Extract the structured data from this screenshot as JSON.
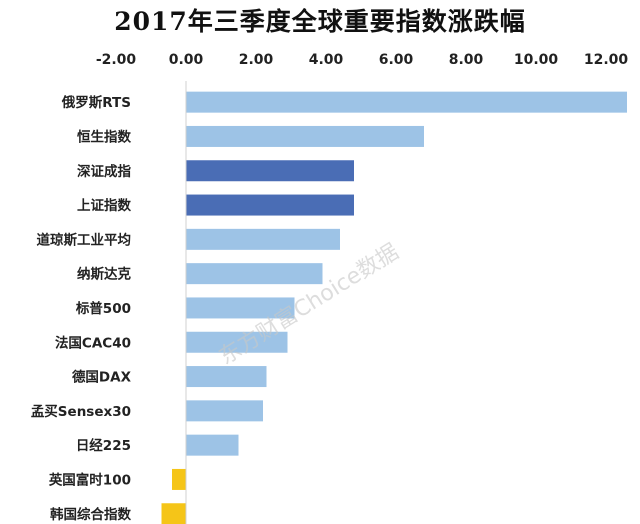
{
  "chart_data": {
    "type": "bar",
    "orientation": "horizontal",
    "title": "2017年三季度全球重要指数涨跌幅",
    "xlabel": "",
    "ylabel": "",
    "xlim": [
      -2,
      12.5
    ],
    "tick_values": [
      -2,
      0,
      2,
      4,
      6,
      8,
      10,
      12
    ],
    "tick_labels": [
      "-2.00",
      "0.00",
      "2.00",
      "4.00",
      "6.00",
      "8.00",
      "10.00",
      "12.00"
    ],
    "tick_position": "top",
    "grid": false,
    "legend": "none",
    "categories": [
      "俄罗斯RTS",
      "恒生指数",
      "深证成指",
      "上证指数",
      "道琼斯工业平均",
      "纳斯达克",
      "标普500",
      "法国CAC40",
      "德国DAX",
      "孟买Sensex30",
      "日经225",
      "英国富时100",
      "韩国综合指数"
    ],
    "values": [
      12.6,
      6.8,
      4.8,
      4.8,
      4.4,
      3.9,
      3.1,
      2.9,
      2.3,
      2.2,
      1.5,
      -0.4,
      -0.7
    ],
    "bar_colors": [
      "#9dc3e6",
      "#9dc3e6",
      "#4a6db5",
      "#4a6db5",
      "#9dc3e6",
      "#9dc3e6",
      "#9dc3e6",
      "#9dc3e6",
      "#9dc3e6",
      "#9dc3e6",
      "#9dc3e6",
      "#f5c518",
      "#f5c518"
    ],
    "watermark": "东方财富Choice数据"
  },
  "colors": {
    "positive": "#9dc3e6",
    "highlight": "#4a6db5",
    "negative": "#f5c518",
    "axis": "#d0d0d0"
  }
}
